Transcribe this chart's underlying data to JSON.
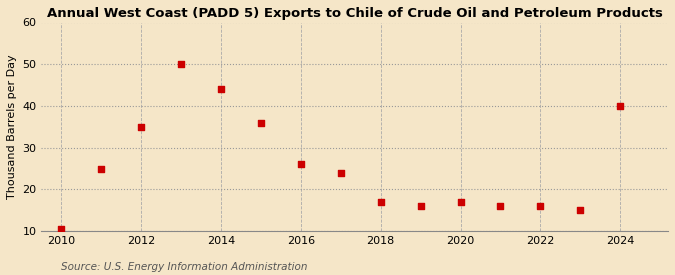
{
  "title": "Annual West Coast (PADD 5) Exports to Chile of Crude Oil and Petroleum Products",
  "ylabel": "Thousand Barrels per Day",
  "source": "Source: U.S. Energy Information Administration",
  "background_color": "#f5e6c8",
  "x_values": [
    2010,
    2011,
    2012,
    2013,
    2014,
    2015,
    2016,
    2017,
    2018,
    2019,
    2020,
    2021,
    2022,
    2023,
    2024
  ],
  "y_values": [
    10.5,
    25,
    35,
    50,
    44,
    36,
    26,
    24,
    17,
    16,
    17,
    16,
    16,
    15,
    40
  ],
  "marker_color": "#cc0000",
  "marker_size": 4,
  "xlim": [
    2009.5,
    2025.2
  ],
  "ylim": [
    10,
    60
  ],
  "yticks": [
    10,
    20,
    30,
    40,
    50,
    60
  ],
  "xticks": [
    2010,
    2012,
    2014,
    2016,
    2018,
    2020,
    2022,
    2024
  ],
  "title_fontsize": 9.5,
  "label_fontsize": 8,
  "tick_fontsize": 8,
  "source_fontsize": 7.5
}
